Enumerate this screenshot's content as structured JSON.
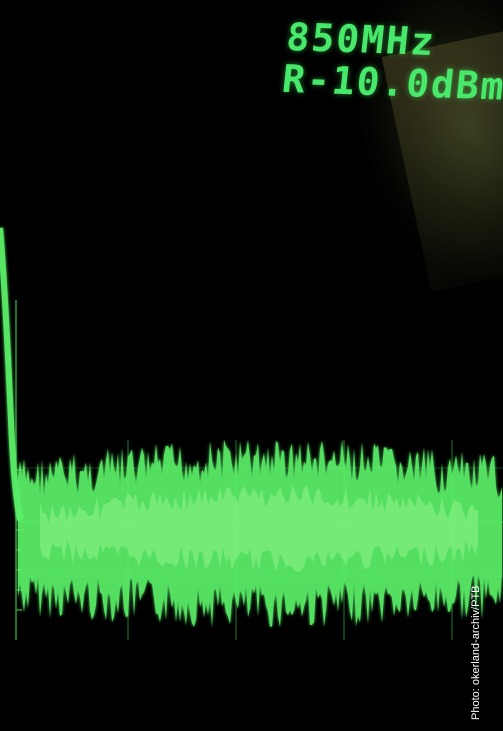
{
  "screen": {
    "frequency_readout": "850MHz",
    "reference_level_readout": "R-10.0dBm",
    "trace_color": "#5cf26a",
    "grid_color": "#1d7f2a"
  },
  "credit": {
    "text": "Photo: okerland-archiv/PTB"
  }
}
